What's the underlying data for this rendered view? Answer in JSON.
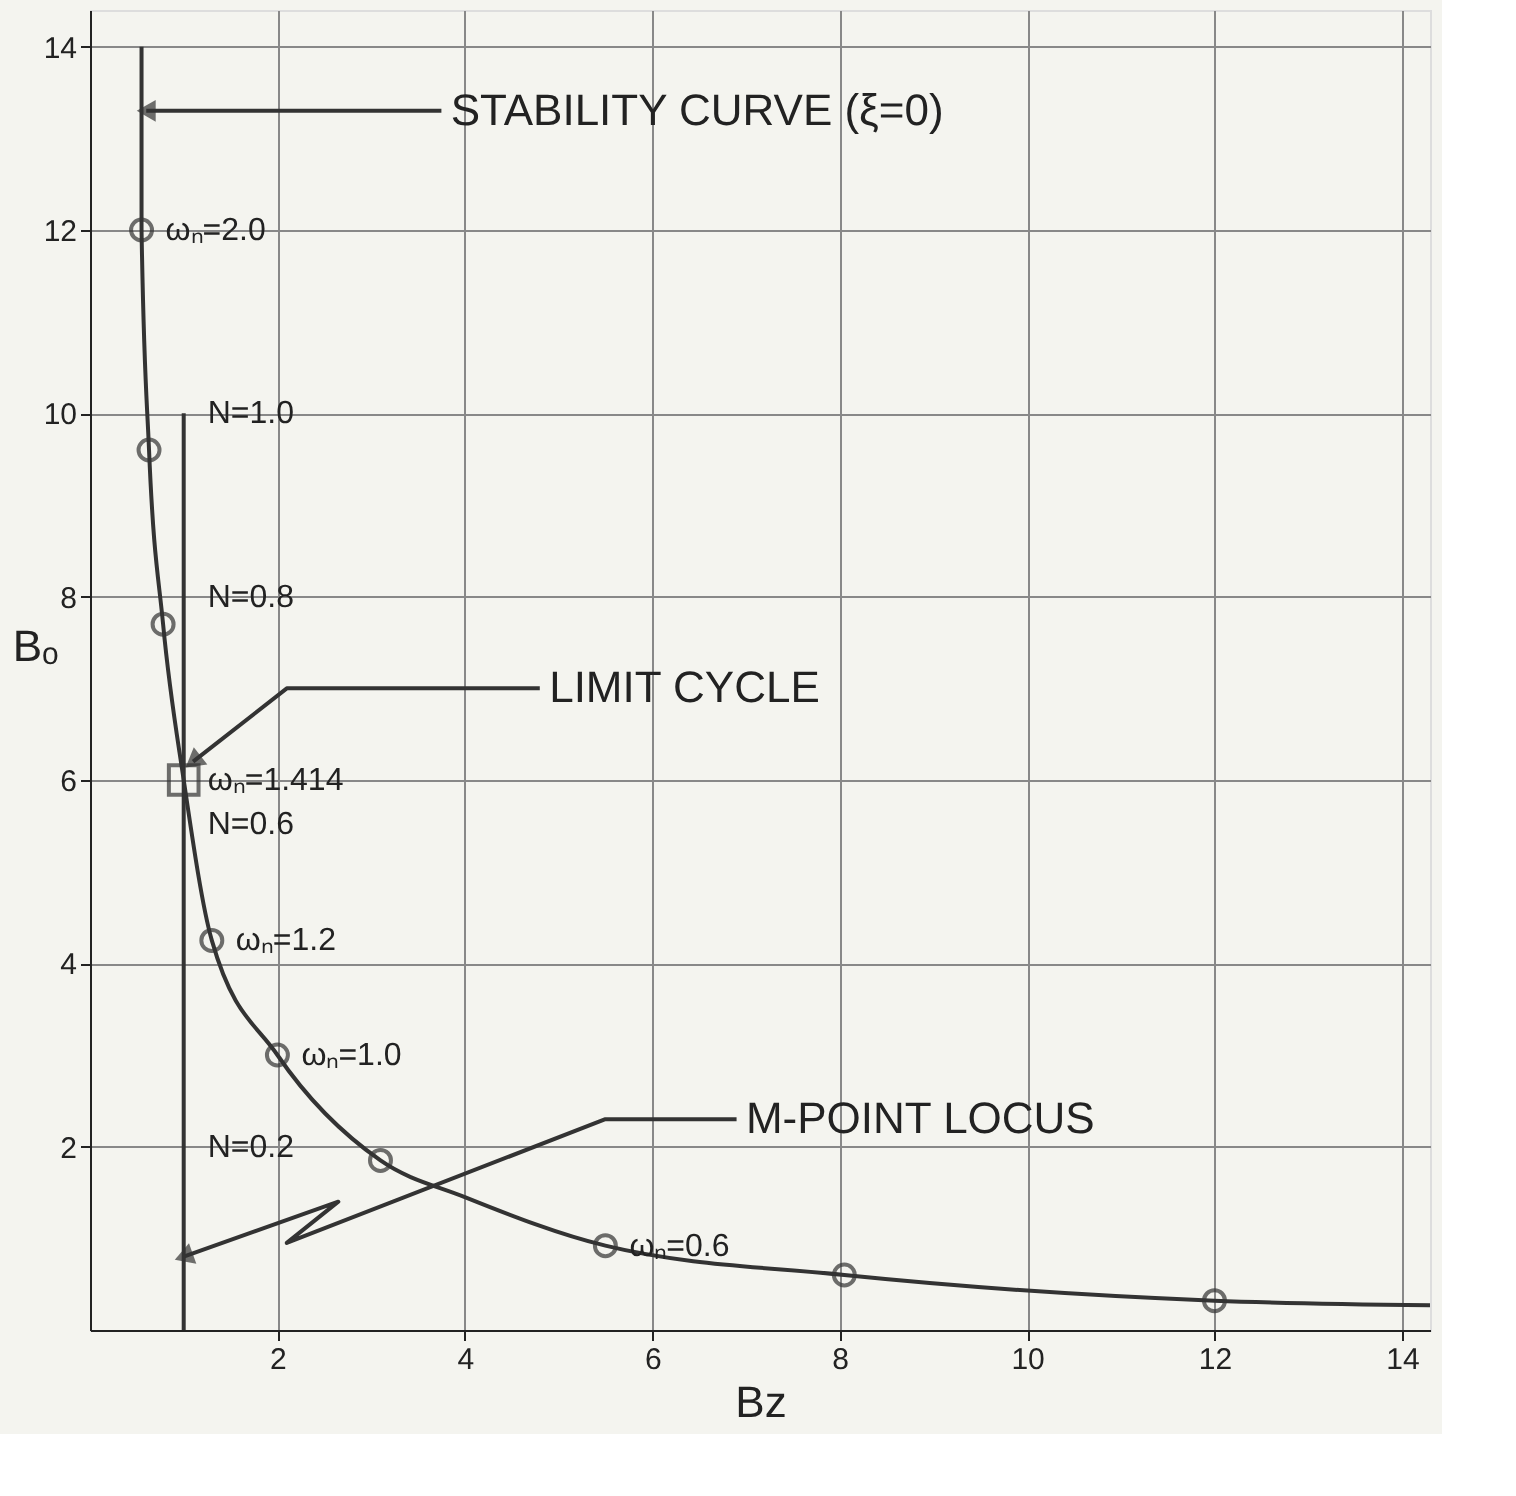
{
  "chart_data": {
    "type": "line",
    "xlabel": "Bz",
    "ylabel": "Bₒ",
    "xlim": [
      0,
      14.3
    ],
    "ylim": [
      0,
      14.4
    ],
    "xticks": [
      2,
      4,
      6,
      8,
      10,
      12,
      14
    ],
    "yticks": [
      2,
      4,
      6,
      8,
      10,
      12,
      14
    ],
    "grid": true,
    "series": [
      {
        "color": "#333333",
        "marker": "none",
        "x": [
          0.55,
          0.55,
          0.63,
          0.78,
          1.0,
          1.3,
          2.0,
          3.1,
          4.0,
          5.5,
          8.05,
          12.0,
          14.3
        ],
        "values": [
          14.0,
          12.0,
          9.6,
          7.7,
          6.0,
          4.25,
          3.0,
          1.85,
          1.45,
          0.92,
          0.6,
          0.32,
          0.27
        ]
      },
      {
        "type": "scatter",
        "color": "#333333",
        "marker": "circle",
        "x": [
          0.55,
          0.63,
          0.78,
          1.3,
          2.0,
          3.1,
          5.5,
          8.05,
          12.0
        ],
        "values": [
          12.0,
          9.6,
          7.7,
          4.25,
          3.0,
          1.85,
          0.92,
          0.6,
          0.32
        ]
      },
      {
        "type": "scatter",
        "color": "#333333",
        "marker": "square",
        "x": [
          1.0
        ],
        "values": [
          6.0
        ]
      },
      {
        "color": "#333333",
        "marker": "none",
        "x": [
          1.0,
          1.0
        ],
        "values": [
          0,
          10.0
        ]
      }
    ],
    "annotations": [
      {
        "text": "STABILITY CURVE (ξ=0)",
        "x": 0.6,
        "y": 13.3
      },
      {
        "text": "LIMIT CYCLE",
        "x": 1.1,
        "y": 6.2
      },
      {
        "text": "M-POINT LOCUS",
        "x": 1.0,
        "y": 0.8
      },
      {
        "text": "ωₙ=2.0",
        "x": 0.55,
        "y": 12.0
      },
      {
        "text": "N=1.0",
        "x": 1.0,
        "y": 10.0
      },
      {
        "text": "N=0.8",
        "x": 1.0,
        "y": 8.0
      },
      {
        "text": "ωₙ=1.414",
        "x": 1.0,
        "y": 6.0
      },
      {
        "text": "N=0.6",
        "x": 1.0,
        "y": 6.0
      },
      {
        "text": "ωₙ=1.2",
        "x": 1.3,
        "y": 4.25
      },
      {
        "text": "ωₙ=1.0",
        "x": 2.0,
        "y": 3.0
      },
      {
        "text": "N=0.2",
        "x": 1.0,
        "y": 2.0
      },
      {
        "text": "ωₙ=0.6",
        "x": 5.5,
        "y": 0.92
      }
    ]
  }
}
